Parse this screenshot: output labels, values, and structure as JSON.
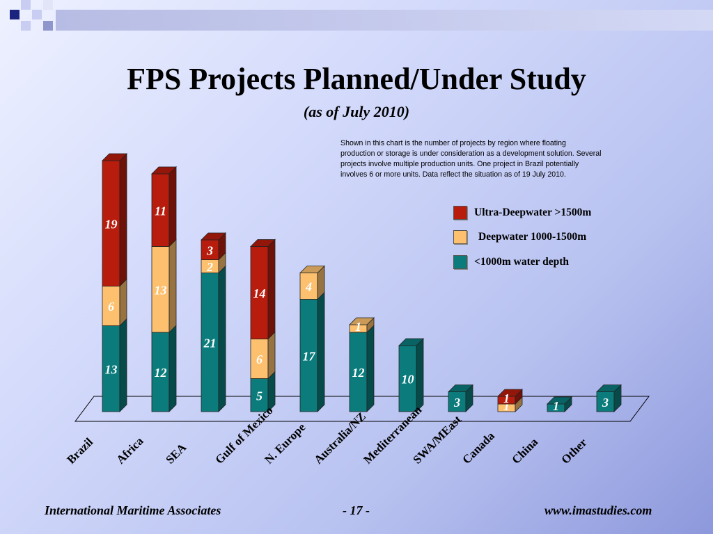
{
  "slide": {
    "title": "FPS Projects Planned/Under Study",
    "subtitle": "(as of July 2010)",
    "note": "Shown in this chart is the number of projects by region where floating production or storage is under consideration as a development solution. Several projects involve multiple production units. One project in Brazil potentially involves 6 or more units.  Data reflect the situation as of 19 July 2010."
  },
  "legend": [
    {
      "label": "Ultra-Deepwater >1500m",
      "color": "#b81c0d"
    },
    {
      "label": "Deepwater 1000-1500m",
      "color": "#fcc06e"
    },
    {
      "label": "<1000m water depth",
      "color": "#0b7b7c"
    }
  ],
  "footer": {
    "left": "International Maritime Associates",
    "center": "- 17 -",
    "right": "www.imastudies.com"
  },
  "colors": {
    "ultra": "#b81c0d",
    "deep": "#fcc06e",
    "shallow": "#0b7b7c"
  },
  "chart_data": {
    "type": "bar",
    "stacked": true,
    "categories": [
      "Brazil",
      "Africa",
      "SEA",
      "Gulf of Mexico",
      "N. Europe",
      "Australia/NZ",
      "Mediterranean",
      "SWA/MEast",
      "Canada",
      "China",
      "Other"
    ],
    "series": [
      {
        "name": "<1000m water depth",
        "values": [
          13,
          12,
          21,
          5,
          17,
          12,
          10,
          3,
          0,
          1,
          3
        ]
      },
      {
        "name": "Deepwater 1000-1500m",
        "values": [
          6,
          13,
          2,
          6,
          4,
          1,
          0,
          0,
          1,
          0,
          0
        ]
      },
      {
        "name": "Ultra-Deepwater >1500m",
        "values": [
          19,
          11,
          3,
          14,
          0,
          0,
          0,
          0,
          1,
          0,
          0
        ]
      }
    ]
  }
}
